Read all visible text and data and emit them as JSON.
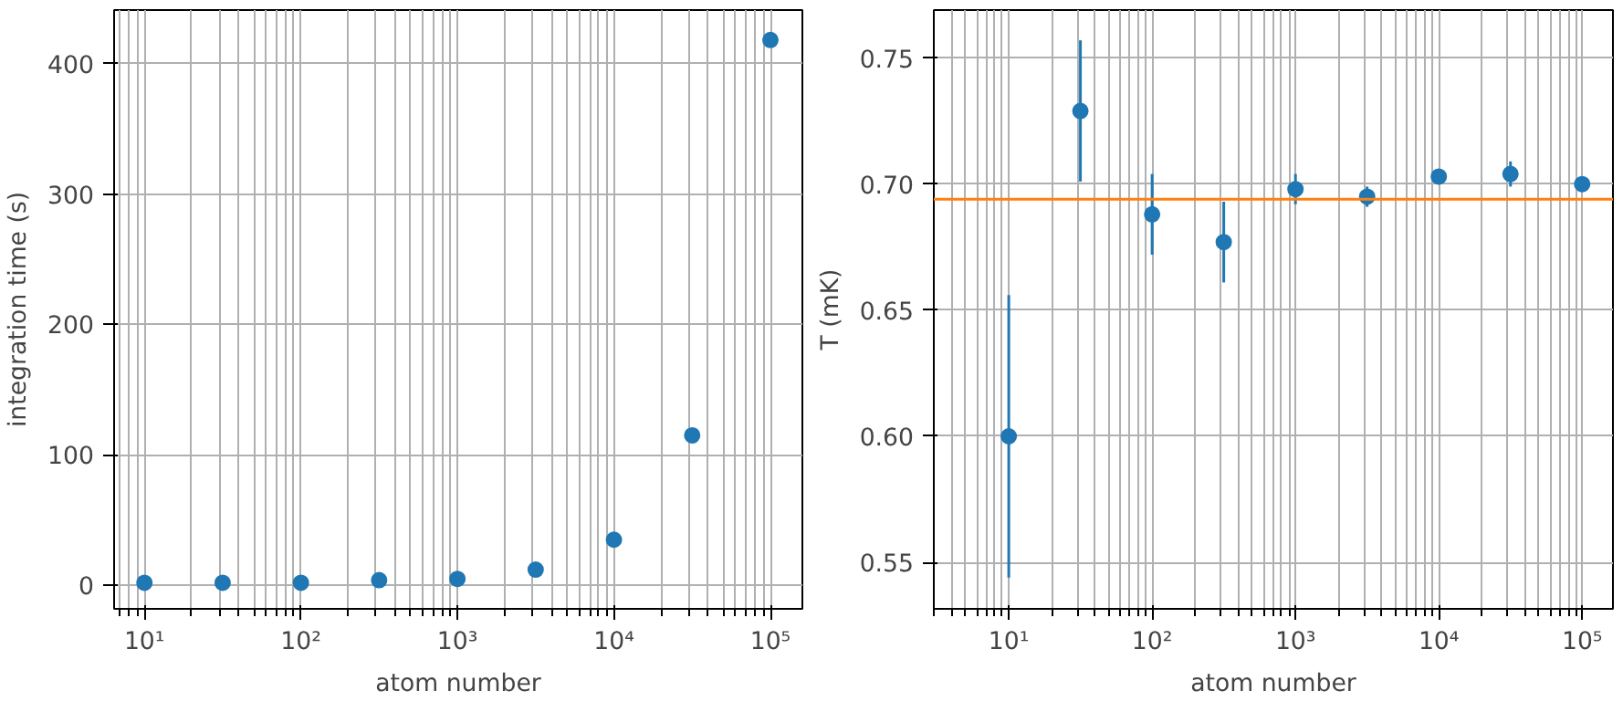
{
  "chart_data": [
    {
      "type": "scatter",
      "xlabel": "atom number",
      "ylabel": "integration time (s)",
      "log": "x",
      "grid": true,
      "marker": "circle",
      "xlim": [
        6.4,
        160000
      ],
      "ylim": [
        -18,
        441
      ],
      "xticks": [
        {
          "value": 10,
          "label": "10¹"
        },
        {
          "value": 100,
          "label": "10²"
        },
        {
          "value": 1000,
          "label": "10³"
        },
        {
          "value": 10000,
          "label": "10⁴"
        },
        {
          "value": 100000,
          "label": "10⁵"
        }
      ],
      "yticks": [
        0,
        100,
        200,
        300,
        400
      ],
      "series": [
        {
          "color": "#1f77b4",
          "x": [
            10,
            31.6,
            100,
            316,
            1000,
            3162,
            10000,
            31623,
            100000
          ],
          "values": [
            2,
            2,
            2,
            4,
            5,
            12,
            35,
            115,
            418
          ]
        }
      ]
    },
    {
      "type": "scatter",
      "xlabel": "atom number",
      "ylabel": "T (mK)",
      "log": "x",
      "grid": true,
      "marker": "circle",
      "xlim": [
        3.0,
        164000
      ],
      "ylim": [
        0.5316,
        0.769
      ],
      "xticks": [
        {
          "value": 10,
          "label": "10¹"
        },
        {
          "value": 100,
          "label": "10²"
        },
        {
          "value": 1000,
          "label": "10³"
        },
        {
          "value": 10000,
          "label": "10⁴"
        },
        {
          "value": 100000,
          "label": "10⁵"
        }
      ],
      "yticks": [
        {
          "value": 0.55,
          "label": "0.55"
        },
        {
          "value": 0.6,
          "label": "0.60"
        },
        {
          "value": 0.65,
          "label": "0.65"
        },
        {
          "value": 0.7,
          "label": "0.70"
        },
        {
          "value": 0.75,
          "label": "0.75"
        }
      ],
      "series": [
        {
          "color": "#1f77b4",
          "x": [
            10,
            31.6,
            100,
            316,
            1000,
            3162,
            10000,
            31623,
            100000
          ],
          "values": [
            0.6,
            0.729,
            0.688,
            0.677,
            0.698,
            0.695,
            0.703,
            0.704,
            0.7
          ],
          "errors": [
            0.056,
            0.028,
            0.016,
            0.016,
            0.006,
            0.004,
            0.002,
            0.005,
            0.002
          ]
        }
      ],
      "ref_lines": [
        {
          "axis": "y",
          "value": 0.694,
          "color": "#ff7f0e"
        }
      ]
    }
  ]
}
